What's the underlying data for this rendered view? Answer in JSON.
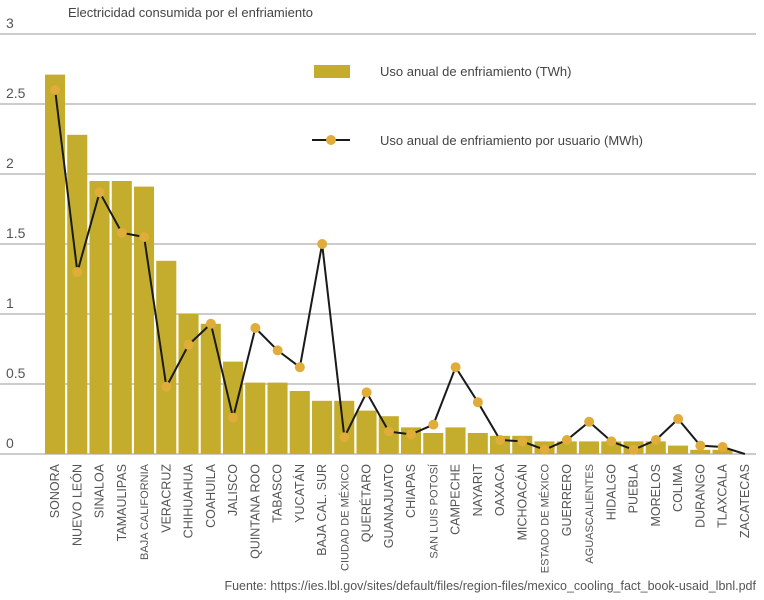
{
  "chart_data": {
    "type": "bar",
    "title": "Electricidad consumida por el enfriamiento",
    "source": "Fuente: https://ies.lbl.gov/sites/default/files/region-files/mexico_cooling_fact_book-usaid_lbnl.pdf",
    "ylim": [
      0,
      3
    ],
    "yticks": [
      {
        "value": 0,
        "label": "0"
      },
      {
        "value": 0.5,
        "label": "0.5"
      },
      {
        "value": 1,
        "label": "1"
      },
      {
        "value": 1.5,
        "label": "1.5"
      },
      {
        "value": 2,
        "label": "2"
      },
      {
        "value": 2.5,
        "label": "2.5"
      },
      {
        "value": 3,
        "label": "3"
      }
    ],
    "grid": true,
    "legend_position": "top-right",
    "categories": [
      "SONORA",
      "NUEVO LEÓN",
      "SINALOA",
      "TAMAULIPAS",
      "BAJA CALIFORNIA",
      "VERACRUZ",
      "CHIHUAHUA",
      "COAHUILA",
      "JALISCO",
      "QUINTANA ROO",
      "TABASCO",
      "YUCATÁN",
      "BAJA CAL. SUR",
      "CIUDAD DE MÉXICO",
      "QUERÉTARO",
      "GUANAJUATO",
      "CHIAPAS",
      "SAN LUIS POTOSÍ",
      "CAMPECHE",
      "NAYARIT",
      "OAXACA",
      "MICHOACÁN",
      "ESTADO DE MÉXICO",
      "GUERRERO",
      "AGUASCALIENTES",
      "HIDALGO",
      "PUEBLA",
      "MORELOS",
      "COLIMA",
      "DURANGO",
      "TLAXCALA",
      "ZACATECAS"
    ],
    "series": [
      {
        "name": "Uso anual de enfriamiento (TWh)",
        "kind": "bar",
        "color": "#c4ac2c",
        "values": [
          2.71,
          2.28,
          1.95,
          1.95,
          1.91,
          1.38,
          1.0,
          0.93,
          0.66,
          0.51,
          0.51,
          0.45,
          0.38,
          0.38,
          0.31,
          0.27,
          0.19,
          0.15,
          0.19,
          0.15,
          0.13,
          0.13,
          0.09,
          0.09,
          0.09,
          0.09,
          0.09,
          0.09,
          0.06,
          0.03,
          0.03,
          0.0
        ]
      },
      {
        "name": "Uso anual de enfriamiento por usuario (MWh)",
        "kind": "line",
        "color": "#1a1a1a",
        "marker_color": "#e0ac3a",
        "values": [
          2.6,
          1.3,
          1.87,
          1.58,
          1.55,
          0.48,
          0.78,
          0.93,
          0.26,
          0.9,
          0.74,
          0.62,
          1.5,
          0.12,
          0.44,
          0.16,
          0.14,
          0.21,
          0.62,
          0.37,
          0.1,
          0.09,
          0.03,
          0.1,
          0.23,
          0.09,
          0.03,
          0.1,
          0.25,
          0.06,
          0.05,
          0.0
        ]
      }
    ]
  }
}
